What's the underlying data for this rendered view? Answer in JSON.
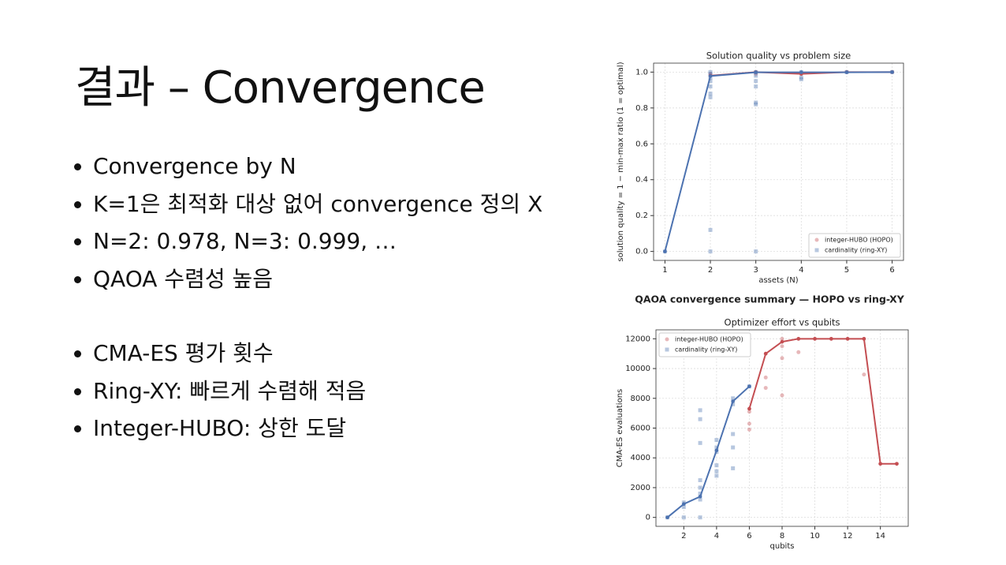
{
  "slide": {
    "title": "결과 – Convergence",
    "bullets_1": [
      "Convergence by N",
      "K=1은 최적화 대상 없어 convergence 정의 X",
      "N=2: 0.978, N=3: 0.999, …",
      "QAOA 수렴성 높음"
    ],
    "bullets_2": [
      "CMA-ES 평가 횟수",
      "Ring-XY: 빠르게 수렴해 적음",
      "Integer-HUBO: 상한 도달"
    ]
  },
  "figure_title": "QAOA convergence summary — HOPO vs ring-XY",
  "chart_data": [
    {
      "type": "line",
      "title": "Solution quality vs problem size",
      "xlabel": "assets (N)",
      "ylabel": "solution quality = 1 − min-max ratio (1 = optimal)",
      "xlim": [
        0.75,
        6.25
      ],
      "xticks": [
        1,
        2,
        3,
        4,
        5,
        6
      ],
      "ylim": [
        -0.05,
        1.05
      ],
      "yticks": [
        {
          "value": 0,
          "label": "0.0"
        },
        0.2,
        0.4,
        0.6,
        0.8,
        {
          "value": 1,
          "label": "1.0"
        }
      ],
      "grid": true,
      "legend": "lower right",
      "series": [
        {
          "name": "integer-HUBO (HOPO)",
          "color": "#c44e52",
          "marker": "circle",
          "x": [
            2,
            3,
            3,
            4,
            5,
            6
          ],
          "values": [
            0.99,
            1.0,
            0.99,
            0.99,
            1.0,
            1.0
          ],
          "line_x": [
            2,
            3,
            4,
            5,
            6
          ],
          "line_values": [
            0.98,
            1.0,
            0.99,
            1.0,
            1.0
          ]
        },
        {
          "name": "cardinality (ring-XY)",
          "color": "#4c72b0",
          "marker": "square",
          "x": [
            1,
            2,
            2,
            2,
            2,
            2,
            2,
            2,
            2,
            2,
            3,
            3,
            3,
            3,
            3,
            3,
            3,
            4,
            4,
            4,
            5,
            6
          ],
          "values": [
            0,
            0,
            0.12,
            0.86,
            0.88,
            0.92,
            0.95,
            0.97,
            0.99,
            1.0,
            0,
            0.82,
            0.83,
            0.92,
            0.95,
            0.98,
            1.0,
            0.96,
            0.97,
            1.0,
            1.0,
            1.0
          ],
          "line_x": [
            1,
            2,
            3,
            4,
            5,
            6
          ],
          "line_values": [
            0,
            0.978,
            0.999,
            0.999,
            0.999,
            1.0
          ]
        }
      ]
    },
    {
      "type": "line",
      "title": "Optimizer effort vs qubits",
      "xlabel": "qubits",
      "ylabel": "CMA-ES evaluations",
      "xlim": [
        0.3,
        15.7
      ],
      "xticks": [
        2,
        4,
        6,
        8,
        10,
        12,
        14
      ],
      "ylim": [
        -600,
        12600
      ],
      "yticks": [
        0,
        2000,
        4000,
        6000,
        8000,
        10000,
        12000
      ],
      "grid": true,
      "legend": "upper left",
      "series": [
        {
          "name": "integer-HUBO (HOPO)",
          "color": "#c44e52",
          "marker": "circle",
          "x": [
            6,
            6,
            6,
            6,
            7,
            7,
            7,
            8,
            8,
            8,
            8,
            9,
            9,
            10,
            11,
            12,
            13,
            13,
            14,
            15
          ],
          "values": [
            5900,
            6300,
            7100,
            7300,
            8700,
            9400,
            11000,
            8200,
            10700,
            11500,
            12000,
            11100,
            12000,
            12000,
            12000,
            12000,
            9600,
            12000,
            3600,
            3600
          ],
          "line_x": [
            6,
            7,
            8,
            9,
            10,
            11,
            12,
            13,
            14,
            15
          ],
          "line_values": [
            7300,
            11000,
            11800,
            12000,
            12000,
            12000,
            12000,
            12000,
            3600,
            3600
          ]
        },
        {
          "name": "cardinality (ring-XY)",
          "color": "#4c72b0",
          "marker": "square",
          "x": [
            1,
            2,
            2,
            2,
            3,
            3,
            3,
            3,
            3,
            3,
            3,
            3,
            4,
            4,
            4,
            4,
            4,
            4,
            5,
            5,
            5,
            5,
            5,
            6
          ],
          "values": [
            0,
            0,
            700,
            1000,
            0,
            1200,
            1600,
            2000,
            2500,
            5000,
            6600,
            7200,
            2800,
            3100,
            3500,
            4400,
            4700,
            5200,
            3300,
            4700,
            5600,
            7600,
            8000,
            8800
          ],
          "line_x": [
            1,
            2,
            3,
            4,
            5,
            6
          ],
          "line_values": [
            0,
            900,
            1400,
            4500,
            7800,
            8800
          ]
        }
      ]
    }
  ]
}
